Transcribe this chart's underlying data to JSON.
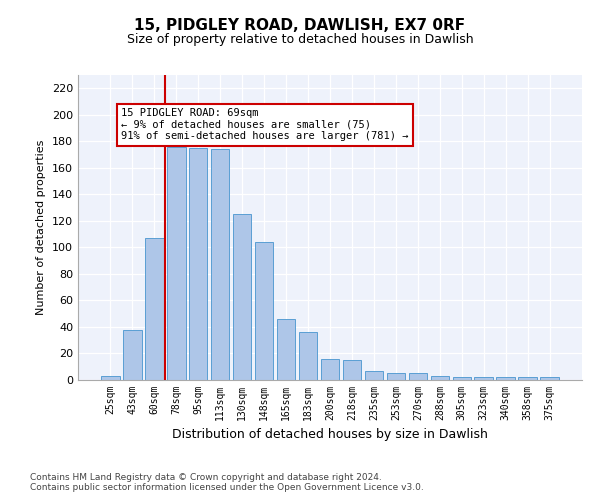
{
  "title": "15, PIDGLEY ROAD, DAWLISH, EX7 0RF",
  "subtitle": "Size of property relative to detached houses in Dawlish",
  "xlabel": "Distribution of detached houses by size in Dawlish",
  "ylabel": "Number of detached properties",
  "categories": [
    "25sqm",
    "43sqm",
    "60sqm",
    "78sqm",
    "95sqm",
    "113sqm",
    "130sqm",
    "148sqm",
    "165sqm",
    "183sqm",
    "200sqm",
    "218sqm",
    "235sqm",
    "253sqm",
    "270sqm",
    "288sqm",
    "305sqm",
    "323sqm",
    "340sqm",
    "358sqm",
    "375sqm"
  ],
  "bar_heights": [
    3,
    38,
    107,
    176,
    175,
    174,
    125,
    104,
    46,
    36,
    16,
    15,
    7,
    5,
    5,
    3,
    2,
    2,
    2,
    2,
    2
  ],
  "bar_color": "#aec6e8",
  "bar_edge_color": "#5a9fd4",
  "annotation_text_line1": "15 PIDGLEY ROAD: 69sqm",
  "annotation_text_line2": "← 9% of detached houses are smaller (75)",
  "annotation_text_line3": "91% of semi-detached houses are larger (781) →",
  "annotation_box_edge_color": "#cc0000",
  "red_line_x": 2.5,
  "ylim": [
    0,
    230
  ],
  "yticks": [
    0,
    20,
    40,
    60,
    80,
    100,
    120,
    140,
    160,
    180,
    200,
    220
  ],
  "footnote1": "Contains HM Land Registry data © Crown copyright and database right 2024.",
  "footnote2": "Contains public sector information licensed under the Open Government Licence v3.0.",
  "bg_color": "#eef2fb",
  "bar_width": 0.85
}
